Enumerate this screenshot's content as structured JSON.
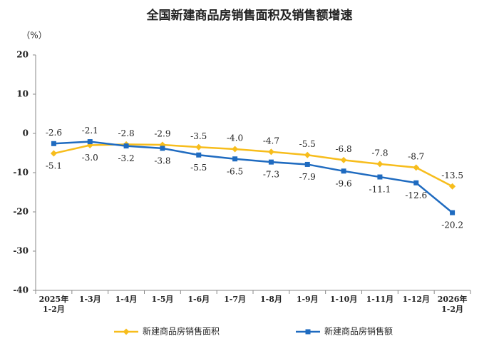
{
  "chart_data": {
    "type": "line",
    "title": "全国新建商品房销售面积及销售额增速",
    "y_unit": "（%）",
    "categories": [
      "2025年\n1-2月",
      "1-3月",
      "1-4月",
      "1-5月",
      "1-6月",
      "1-7月",
      "1-8月",
      "1-9月",
      "1-10月",
      "1-11月",
      "1-12月",
      "2026年\n1-2月"
    ],
    "series": [
      {
        "name": "新建商品房销售面积",
        "color": "#f7bd1c",
        "marker": "diamond",
        "values": [
          -5.1,
          -3.0,
          -2.8,
          -2.9,
          -3.5,
          -4.0,
          -4.7,
          -5.5,
          -6.8,
          -7.8,
          -8.7,
          -13.5
        ],
        "value_labels": [
          "-5.1",
          "-3.0",
          "-2.8",
          "-2.9",
          "-3.5",
          "-4.0",
          "-4.7",
          "-5.5",
          "-6.8",
          "-7.8",
          "-8.7",
          "-13.5"
        ]
      },
      {
        "name": "新建商品房销售额",
        "color": "#1f6bc0",
        "marker": "square",
        "values": [
          -2.6,
          -2.1,
          -3.2,
          -3.8,
          -5.5,
          -6.5,
          -7.3,
          -7.9,
          -9.6,
          -11.1,
          -12.6,
          -20.2
        ],
        "value_labels": [
          "-2.6",
          "-2.1",
          "-3.2",
          "-3.8",
          "-5.5",
          "-6.5",
          "-7.3",
          "-7.9",
          "-9.6",
          "-11.1",
          "-12.6",
          "-20.2"
        ]
      }
    ],
    "ylim": [
      -40,
      20
    ],
    "yticks": [
      -40,
      -30,
      -20,
      -10,
      0,
      10,
      20
    ],
    "grid": false
  }
}
